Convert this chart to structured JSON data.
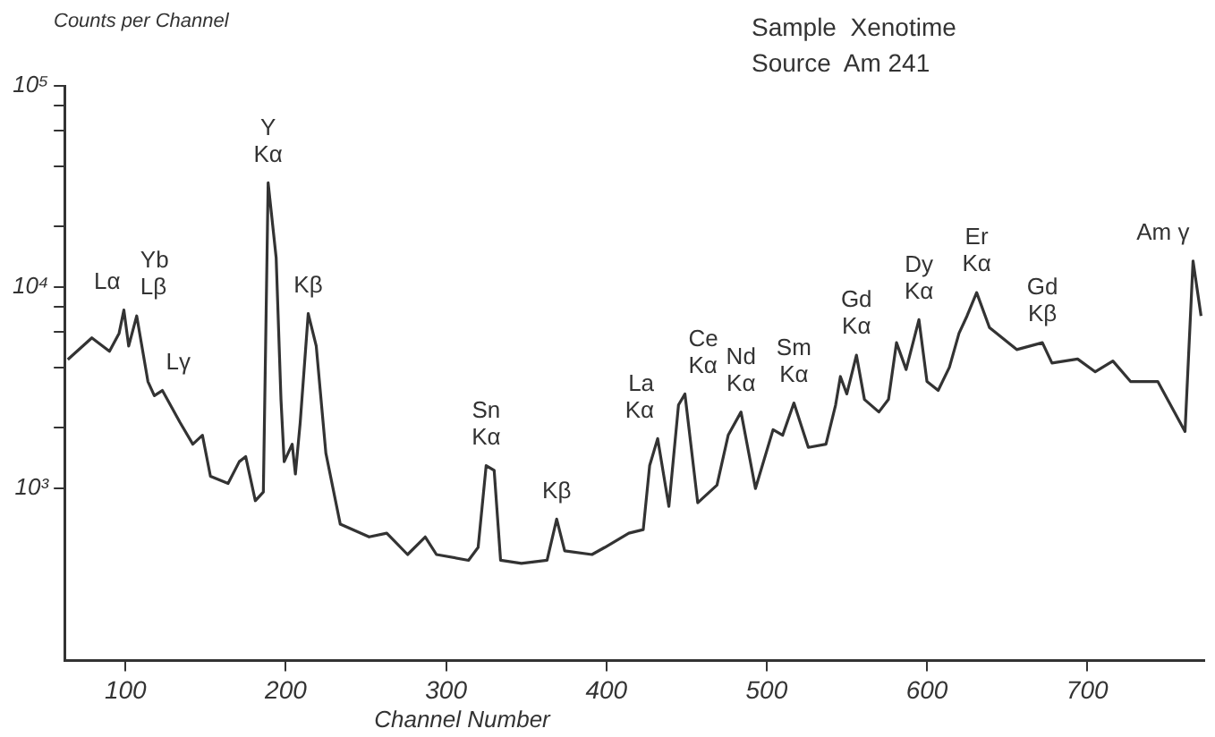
{
  "chart_data": {
    "type": "line",
    "xlabel": "Channel Number",
    "ylabel": "Counts per Channel",
    "log": true,
    "marker": "none",
    "line_style": "solid",
    "color": "#333333",
    "xlim": [
      62,
      773
    ],
    "xticks": [
      100,
      200,
      300,
      400,
      500,
      600,
      700
    ],
    "ylim": [
      140,
      100000
    ],
    "yticks": [
      {
        "value": 1000,
        "label": "10³"
      },
      {
        "value": 2000,
        "label": null
      },
      {
        "value": 4000,
        "label": null
      },
      {
        "value": 6000,
        "label": null
      },
      {
        "value": 8000,
        "label": null
      },
      {
        "value": 10000,
        "label": "10⁴"
      },
      {
        "value": 20000,
        "label": null
      },
      {
        "value": 40000,
        "label": null
      },
      {
        "value": 60000,
        "label": null
      },
      {
        "value": 80000,
        "label": null
      },
      {
        "value": 100000,
        "label": "10⁵"
      }
    ],
    "x": [
      64,
      79,
      90,
      96,
      99,
      102,
      107,
      114,
      118,
      123,
      134,
      142,
      148,
      153,
      164,
      171,
      175,
      181,
      186,
      189,
      194,
      197,
      199,
      204,
      206,
      209,
      214,
      219,
      225,
      234,
      252,
      263,
      276,
      287,
      294,
      314,
      320,
      325,
      330,
      334,
      347,
      363,
      369,
      374,
      391,
      399,
      414,
      423,
      427,
      432,
      439,
      445,
      449,
      457,
      469,
      476,
      484,
      493,
      504,
      510,
      517,
      526,
      537,
      543,
      546,
      550,
      556,
      561,
      570,
      576,
      581,
      587,
      595,
      600,
      607,
      614,
      620,
      625,
      631,
      639,
      656,
      672,
      678,
      694,
      705,
      716,
      727,
      744,
      761,
      766,
      771
    ],
    "values": [
      4370,
      5600,
      4800,
      5900,
      7700,
      5100,
      7200,
      3400,
      2890,
      3070,
      2130,
      1660,
      1840,
      1150,
      1060,
      1360,
      1440,
      870,
      960,
      33000,
      14000,
      2770,
      1360,
      1660,
      1180,
      2130,
      7400,
      5100,
      1500,
      665,
      575,
      600,
      470,
      575,
      470,
      440,
      510,
      1300,
      1230,
      440,
      425,
      440,
      705,
      490,
      470,
      510,
      600,
      625,
      1300,
      1770,
      815,
      2600,
      2950,
      850,
      1040,
      1840,
      2400,
      1000,
      1960,
      1840,
      2660,
      1600,
      1660,
      2600,
      3600,
      2950,
      4600,
      2770,
      2400,
      2770,
      5300,
      3900,
      6900,
      3400,
      3070,
      4000,
      5900,
      7200,
      9400,
      6300,
      4900,
      5300,
      4200,
      4400,
      3800,
      4300,
      3400,
      3400,
      1920,
      13500,
      7200
    ],
    "annotations": [
      "Sample  Xenotime",
      "Source  Am 241",
      {
        "text": "Lα",
        "x": 99,
        "y": 7700
      },
      {
        "text": "Yb",
        "x": 107,
        "y": 7200
      },
      {
        "text": "Lβ",
        "x": 107,
        "y": 7200
      },
      {
        "text": "Lγ",
        "x": 123,
        "y": 3070
      },
      {
        "text": "Y",
        "x": 189,
        "y": 33000
      },
      {
        "text": "Kα",
        "x": 189,
        "y": 33000
      },
      {
        "text": "Kβ",
        "x": 214,
        "y": 7400
      },
      {
        "text": "Sn",
        "x": 325,
        "y": 1300
      },
      {
        "text": "Kα",
        "x": 325,
        "y": 1300
      },
      {
        "text": "Kβ",
        "x": 369,
        "y": 705
      },
      {
        "text": "La",
        "x": 432,
        "y": 1770
      },
      {
        "text": "Kα",
        "x": 432,
        "y": 1770
      },
      {
        "text": "Ce",
        "x": 449,
        "y": 2950
      },
      {
        "text": "Kα",
        "x": 449,
        "y": 2950
      },
      {
        "text": "Nd",
        "x": 484,
        "y": 2400
      },
      {
        "text": "Kα",
        "x": 484,
        "y": 2400
      },
      {
        "text": "Sm",
        "x": 517,
        "y": 2660
      },
      {
        "text": "Kα",
        "x": 517,
        "y": 2660
      },
      {
        "text": "Gd",
        "x": 556,
        "y": 4600
      },
      {
        "text": "Kα",
        "x": 556,
        "y": 4600
      },
      {
        "text": "Dy",
        "x": 595,
        "y": 6900
      },
      {
        "text": "Kα",
        "x": 595,
        "y": 6900
      },
      {
        "text": "Er",
        "x": 631,
        "y": 9400
      },
      {
        "text": "Kα",
        "x": 631,
        "y": 9400
      },
      {
        "text": "Gd",
        "x": 672,
        "y": 5300
      },
      {
        "text": "Kβ",
        "x": 672,
        "y": 5300
      },
      {
        "text": "Am γ",
        "x": 766,
        "y": 13500
      }
    ]
  }
}
